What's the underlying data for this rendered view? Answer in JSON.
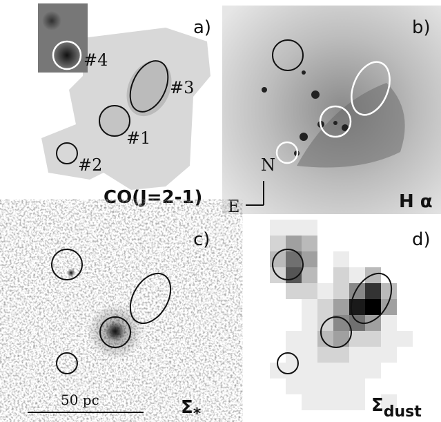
{
  "panels": [
    {
      "label": "a)",
      "regions": [
        "#4",
        "#3",
        "#1",
        "#2"
      ],
      "tag": "CO(J=2-1)"
    },
    {
      "label": "b)",
      "compass": {
        "north": "N",
        "east": "E"
      },
      "tag": "H α"
    },
    {
      "label": "c)",
      "scale_bar": "50 pc",
      "tag": {
        "symbol": "Σ",
        "subscript": "*"
      }
    },
    {
      "label": "d)",
      "tag": {
        "symbol": "Σ",
        "subscript": "dust"
      }
    }
  ]
}
